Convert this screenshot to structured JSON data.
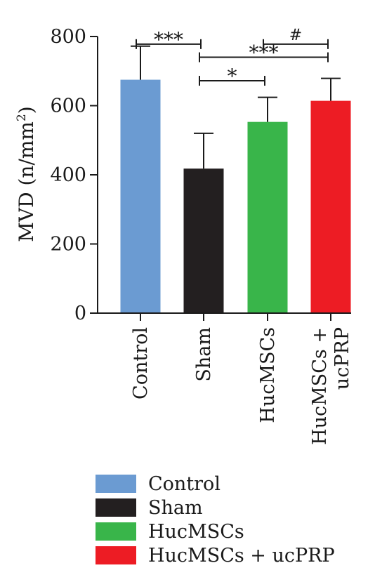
{
  "chart_data": {
    "type": "bar",
    "ylabel": "MVD (n/mm²)",
    "ylabel_main": "MVD (n/mm",
    "ylabel_sup": "2",
    "ylabel_close": ")",
    "ylim": [
      0,
      800
    ],
    "yticks": [
      0,
      200,
      400,
      600,
      800
    ],
    "categories": [
      "Control",
      "Sham",
      "HucMSCs",
      "HucMSCs + ucPRP"
    ],
    "tick_labels": [
      [
        "Control"
      ],
      [
        "Sham"
      ],
      [
        "HucMSCs"
      ],
      [
        "HucMSCs +",
        "ucPRP"
      ]
    ],
    "values": [
      675,
      418,
      553,
      614
    ],
    "errors": [
      97,
      102,
      71,
      65
    ],
    "colors": [
      "#6b9bd2",
      "#231f20",
      "#39b54a",
      "#ed1c24"
    ],
    "significance": [
      {
        "from": 0,
        "to": 1,
        "label": "***",
        "y": 778
      },
      {
        "from": 2,
        "to": 3,
        "label": "#",
        "y": 778
      },
      {
        "from": 1,
        "to": 3,
        "label": "***",
        "y": 740
      },
      {
        "from": 1,
        "to": 2,
        "label": "*",
        "y": 672
      }
    ],
    "legend": {
      "placement": "bottom",
      "entries": [
        "Control",
        "Sham",
        "HucMSCs",
        "HucMSCs + ucPRP"
      ]
    }
  }
}
